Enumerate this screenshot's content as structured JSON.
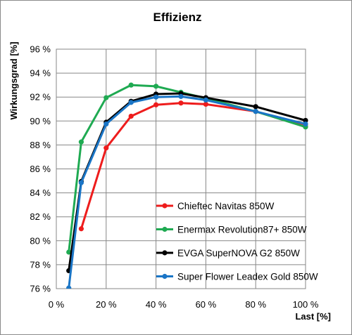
{
  "chart_data": {
    "type": "line",
    "title": "Effizienz",
    "xlabel": "Last [%]",
    "ylabel": "Wirkungsgrad [%]",
    "xlim": [
      0,
      100
    ],
    "ylim": [
      76,
      96
    ],
    "xticks": [
      "0 %",
      "20 %",
      "40 %",
      "60 %",
      "80 %",
      "100 %"
    ],
    "yticks": [
      "76 %",
      "78 %",
      "80 %",
      "82 %",
      "84 %",
      "86 %",
      "88 %",
      "90 %",
      "92 %",
      "94 %",
      "96 %"
    ],
    "grid": true,
    "legend_position": "bottom-right",
    "series": [
      {
        "name": "Chieftec Navitas 850W",
        "color": "#ee1c1c",
        "x": [
          10,
          20,
          30,
          40,
          50,
          60,
          80,
          100
        ],
        "y": [
          81.0,
          87.75,
          90.4,
          91.35,
          91.5,
          91.4,
          90.8,
          89.55
        ]
      },
      {
        "name": "Enermax Revolution87+ 850W",
        "color": "#1faa52",
        "x": [
          5,
          10,
          20,
          30,
          40,
          50,
          60,
          80,
          100
        ],
        "y": [
          79.05,
          88.25,
          91.95,
          93.0,
          92.9,
          92.4,
          91.9,
          90.8,
          89.5
        ]
      },
      {
        "name": "EVGA SuperNOVA G2 850W",
        "color": "#000000",
        "x": [
          5,
          10,
          20,
          30,
          40,
          50,
          60,
          80,
          100
        ],
        "y": [
          77.5,
          84.95,
          89.9,
          91.65,
          92.25,
          92.3,
          91.95,
          91.2,
          90.05
        ]
      },
      {
        "name": "Super Flower Leadex Gold 850W",
        "color": "#1a75c6",
        "x": [
          5,
          10,
          20,
          30,
          40,
          50,
          60,
          80,
          100
        ],
        "y": [
          76.05,
          84.85,
          89.75,
          91.55,
          92.0,
          92.05,
          91.75,
          90.8,
          89.75
        ]
      }
    ]
  }
}
